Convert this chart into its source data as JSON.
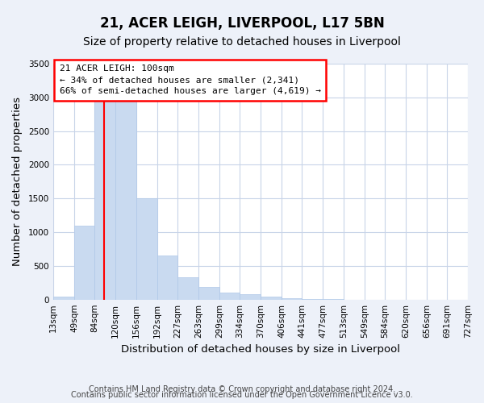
{
  "title": "21, ACER LEIGH, LIVERPOOL, L17 5BN",
  "subtitle": "Size of property relative to detached houses in Liverpool",
  "xlabel": "Distribution of detached houses by size in Liverpool",
  "ylabel": "Number of detached properties",
  "bar_color": "#c9daf0",
  "bar_edge_color": "#b0c8e8",
  "red_line_x": 100,
  "annotation_title": "21 ACER LEIGH: 100sqm",
  "annotation_line1": "← 34% of detached houses are smaller (2,341)",
  "annotation_line2": "66% of semi-detached houses are larger (4,619) →",
  "bins": [
    13,
    49,
    84,
    120,
    156,
    192,
    227,
    263,
    299,
    334,
    370,
    406,
    441,
    477,
    513,
    549,
    584,
    620,
    656,
    691,
    727
  ],
  "counts": [
    40,
    1100,
    2950,
    2950,
    1500,
    650,
    330,
    190,
    100,
    80,
    40,
    15,
    8,
    3,
    0,
    0,
    0,
    0,
    0,
    0
  ],
  "ylim": [
    0,
    3500
  ],
  "yticks": [
    0,
    500,
    1000,
    1500,
    2000,
    2500,
    3000,
    3500
  ],
  "footer_line1": "Contains HM Land Registry data © Crown copyright and database right 2024.",
  "footer_line2": "Contains public sector information licensed under the Open Government Licence v3.0.",
  "background_color": "#edf1f9",
  "plot_bg_color": "#ffffff",
  "grid_color": "#c8d4e8",
  "title_fontsize": 12,
  "subtitle_fontsize": 10,
  "axis_label_fontsize": 9.5,
  "tick_fontsize": 7.5,
  "footer_fontsize": 7
}
